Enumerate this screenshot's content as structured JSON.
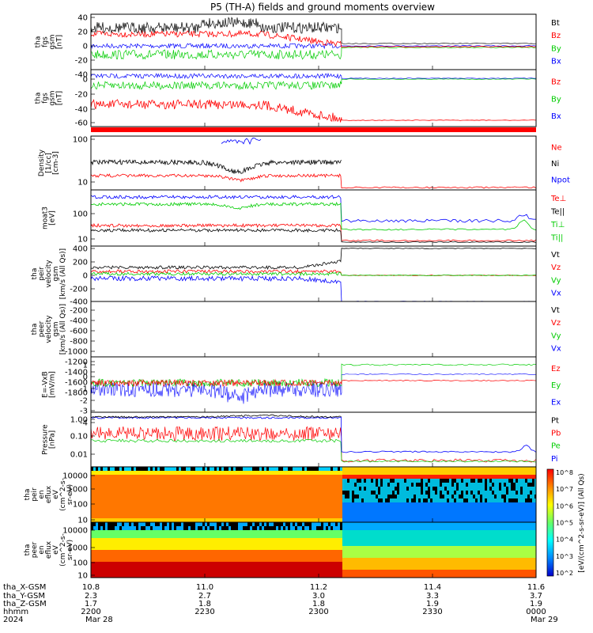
{
  "title": "P5 (TH-A) fields and ground moments overview",
  "colors": {
    "black": "#000000",
    "red": "#ff0000",
    "green": "#00cc00",
    "blue": "#0000ff"
  },
  "panels": [
    {
      "id": "fgs-gsm",
      "label_lines": [
        "tha",
        "fgs",
        "gsm",
        "[nT]"
      ],
      "ticks": [
        "40",
        "20",
        "0",
        "-20",
        "-40"
      ],
      "legend": [
        {
          "text": "Bt",
          "color": "black"
        },
        {
          "text": "Bz",
          "color": "red"
        },
        {
          "text": "By",
          "color": "green"
        },
        {
          "text": "Bx",
          "color": "blue"
        }
      ]
    },
    {
      "id": "fgs-gsm-2",
      "label_lines": [
        "tha",
        "fgs",
        "gsm",
        "[nT]"
      ],
      "ticks": [
        "0",
        "-20",
        "-40",
        "-60"
      ],
      "legend": [
        {
          "text": "Bz",
          "color": "red"
        },
        {
          "text": "By",
          "color": "green"
        },
        {
          "text": "Bx",
          "color": "blue"
        }
      ]
    },
    {
      "id": "density",
      "label_lines": [
        "Density",
        "[1/cc]",
        "[cm-3]"
      ],
      "ticks": [
        "100",
        "10"
      ],
      "legend": [
        {
          "text": "Ne",
          "color": "red"
        },
        {
          "text": "Ni",
          "color": "black"
        },
        {
          "text": "Npot",
          "color": "blue"
        }
      ]
    },
    {
      "id": "temperature",
      "label_lines": [
        "moat3",
        "[eV]"
      ],
      "ticks": [
        "100",
        "10"
      ],
      "legend": [
        {
          "text": "Te⊥",
          "color": "red"
        },
        {
          "text": "Te||",
          "color": "black"
        },
        {
          "text": "Ti⊥",
          "color": "green"
        },
        {
          "text": "Ti||",
          "color": "green"
        }
      ]
    },
    {
      "id": "peir-velocity",
      "label_lines": [
        "tha",
        "peir",
        "velocity",
        "gsm",
        "[km/s (All Qs)]"
      ],
      "ticks": [
        "400",
        "200",
        "0",
        "-200",
        "-400"
      ],
      "legend": [
        {
          "text": "Vt",
          "color": "black"
        },
        {
          "text": "Vz",
          "color": "red"
        },
        {
          "text": "Vy",
          "color": "green"
        },
        {
          "text": "Vx",
          "color": "blue"
        }
      ]
    },
    {
      "id": "peer-velocity",
      "label_lines": [
        "tha",
        "peer",
        "velocity",
        "gsm",
        "[km/s (All Qs)]"
      ],
      "ticks": [
        "-200",
        "-400",
        "-600",
        "-800",
        "-1000",
        "-1200",
        "-1400",
        "-1600",
        "-1800"
      ],
      "legend": [
        {
          "text": "Vt",
          "color": "black"
        },
        {
          "text": "Vz",
          "color": "red"
        },
        {
          "text": "Vy",
          "color": "green"
        },
        {
          "text": "Vx",
          "color": "blue"
        }
      ]
    },
    {
      "id": "efield",
      "label_lines": [
        "E=-VxB",
        "[mV/m]"
      ],
      "ticks": [
        "1",
        "0",
        "-1",
        "-2",
        "-3",
        "-4"
      ],
      "legend": [
        {
          "text": "Ez",
          "color": "red"
        },
        {
          "text": "Ey",
          "color": "green"
        },
        {
          "text": "Ex",
          "color": "blue"
        }
      ]
    },
    {
      "id": "pressure",
      "label_lines": [
        "Pressure",
        "[nPa]"
      ],
      "ticks": [
        "1.00",
        "0.10",
        "0.01"
      ],
      "legend": [
        {
          "text": "Pt",
          "color": "black"
        },
        {
          "text": "Pb",
          "color": "red"
        },
        {
          "text": "Pe",
          "color": "green"
        },
        {
          "text": "Pi",
          "color": "blue"
        }
      ]
    },
    {
      "id": "peir-spectro",
      "label_lines": [
        "tha",
        "peir",
        "en",
        "eflux",
        "eV",
        "(cm^2-s-",
        "sr-eV)"
      ],
      "ticks": [
        "10000",
        "1000",
        "100",
        "10"
      ]
    },
    {
      "id": "peer-spectro",
      "label_lines": [
        "tha",
        "peer",
        "en",
        "eflux",
        "eV",
        "(cm^2-s-",
        "sr-eV)"
      ],
      "ticks": [
        "10000",
        "1000",
        "100",
        "10"
      ]
    }
  ],
  "colorbar": {
    "ticks": [
      "10^8",
      "10^7",
      "10^6",
      "10^5",
      "10^4",
      "10^3",
      "10^2"
    ],
    "label": "[eV/(cm^2-s-sr-eV)] (All Qs)"
  },
  "xaxis": {
    "row_labels": [
      "tha_X-GSM",
      "tha_Y-GSM",
      "tha_Z-GSM",
      "hhmm",
      "2024"
    ],
    "columns": [
      {
        "values": [
          "10.8",
          "2.3",
          "1.7",
          "2200",
          "Mar 28"
        ]
      },
      {
        "values": [
          "11.0",
          "2.7",
          "1.8",
          "2230",
          ""
        ]
      },
      {
        "values": [
          "11.2",
          "3.0",
          "1.8",
          "2300",
          ""
        ]
      },
      {
        "values": [
          "11.4",
          "3.3",
          "1.9",
          "2330",
          ""
        ]
      },
      {
        "values": [
          "11.6",
          "3.7",
          "1.9",
          "0000",
          "Mar 29"
        ]
      }
    ]
  },
  "chart_data": {
    "type": "line",
    "x_range_hhmm": [
      "2200",
      "0000"
    ],
    "discontinuity_hhmm": "2307",
    "series_summary": [
      {
        "panel": "fgs-gsm",
        "name": "Bt",
        "before": 25,
        "after": 3
      },
      {
        "panel": "fgs-gsm",
        "name": "Bz",
        "before": 10,
        "after": -1
      },
      {
        "panel": "fgs-gsm",
        "name": "By",
        "before": -15,
        "after": -1
      },
      {
        "panel": "fgs-gsm",
        "name": "Bx",
        "before": 0,
        "after": 0
      },
      {
        "panel": "density",
        "name": "Ni",
        "before": 35,
        "after": 7
      },
      {
        "panel": "density",
        "name": "Ne",
        "before": 17,
        "after": 8
      },
      {
        "panel": "pressure",
        "name": "Pt",
        "before": 0.9,
        "after": 0.04
      }
    ]
  }
}
